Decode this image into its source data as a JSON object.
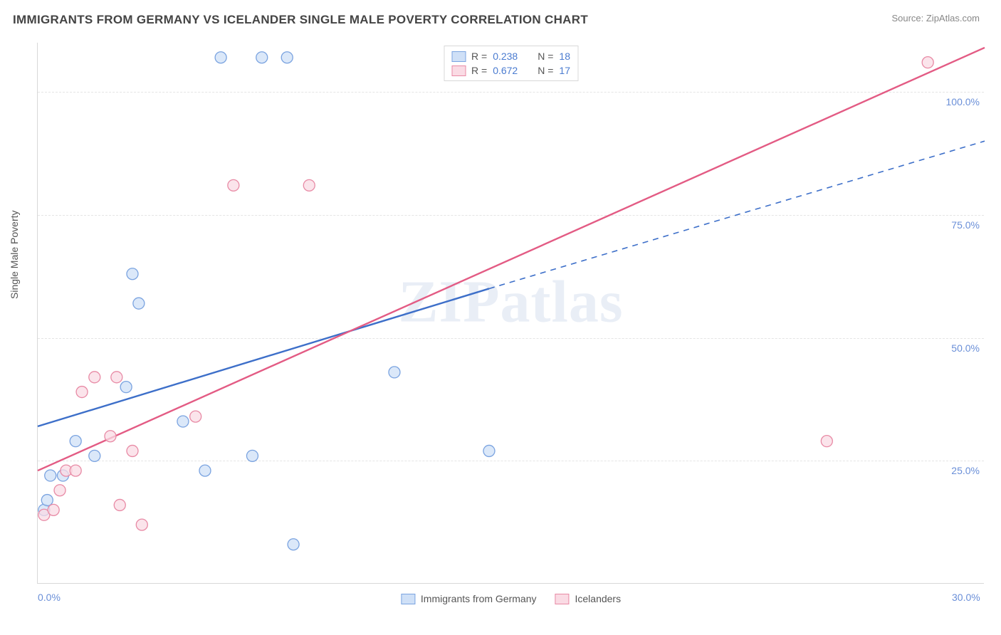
{
  "title": "IMMIGRANTS FROM GERMANY VS ICELANDER SINGLE MALE POVERTY CORRELATION CHART",
  "source_label": "Source: ZipAtlas.com",
  "ylabel": "Single Male Poverty",
  "watermark": "ZIPatlas",
  "chart": {
    "type": "scatter",
    "xlim": [
      0,
      30
    ],
    "ylim": [
      0,
      110
    ],
    "xticks": [
      {
        "v": 0,
        "label": "0.0%"
      },
      {
        "v": 30,
        "label": "30.0%"
      }
    ],
    "yticks": [
      {
        "v": 25,
        "label": "25.0%"
      },
      {
        "v": 50,
        "label": "50.0%"
      },
      {
        "v": 75,
        "label": "75.0%"
      },
      {
        "v": 100,
        "label": "100.0%"
      }
    ],
    "grid_color": "#e4e4e4",
    "background_color": "#ffffff",
    "marker_radius": 8,
    "marker_stroke_width": 1.3,
    "series": [
      {
        "name": "Immigrants from Germany",
        "color_fill": "#cfe0f7",
        "color_stroke": "#7aa3e0",
        "line_color": "#3d6fc9",
        "stats": {
          "R": "0.238",
          "N": "18"
        },
        "points": [
          [
            0.2,
            15
          ],
          [
            0.3,
            17
          ],
          [
            0.4,
            22
          ],
          [
            0.8,
            22
          ],
          [
            1.2,
            29
          ],
          [
            1.8,
            26
          ],
          [
            2.8,
            40
          ],
          [
            3.2,
            57
          ],
          [
            3.0,
            63
          ],
          [
            4.6,
            33
          ],
          [
            5.3,
            23
          ],
          [
            5.8,
            107
          ],
          [
            6.8,
            26
          ],
          [
            7.1,
            107
          ],
          [
            7.9,
            107
          ],
          [
            8.1,
            8
          ],
          [
            11.3,
            43
          ],
          [
            14.3,
            27
          ]
        ],
        "trend": {
          "x1": 0,
          "y1": 32,
          "x2": 14.3,
          "y2": 60
        },
        "trend_dash": {
          "x1": 14.3,
          "y1": 60,
          "x2": 30,
          "y2": 90
        }
      },
      {
        "name": "Icelanders",
        "color_fill": "#fadbe4",
        "color_stroke": "#e88aa5",
        "line_color": "#e35b84",
        "stats": {
          "R": "0.672",
          "N": "17"
        },
        "points": [
          [
            0.2,
            14
          ],
          [
            0.5,
            15
          ],
          [
            0.7,
            19
          ],
          [
            0.9,
            23
          ],
          [
            1.2,
            23
          ],
          [
            1.4,
            39
          ],
          [
            1.8,
            42
          ],
          [
            2.3,
            30
          ],
          [
            2.6,
            16
          ],
          [
            2.5,
            42
          ],
          [
            3.0,
            27
          ],
          [
            3.3,
            12
          ],
          [
            5.0,
            34
          ],
          [
            6.2,
            81
          ],
          [
            8.6,
            81
          ],
          [
            25.0,
            29
          ],
          [
            28.2,
            106
          ]
        ],
        "trend": {
          "x1": 0,
          "y1": 23,
          "x2": 30,
          "y2": 109
        }
      }
    ]
  },
  "legend_top": {
    "r_label": "R =",
    "n_label": "N ="
  },
  "legend_bottom": [
    {
      "label": "Immigrants from Germany",
      "fill": "#cfe0f7",
      "stroke": "#7aa3e0"
    },
    {
      "label": "Icelanders",
      "fill": "#fadbe4",
      "stroke": "#e88aa5"
    }
  ]
}
